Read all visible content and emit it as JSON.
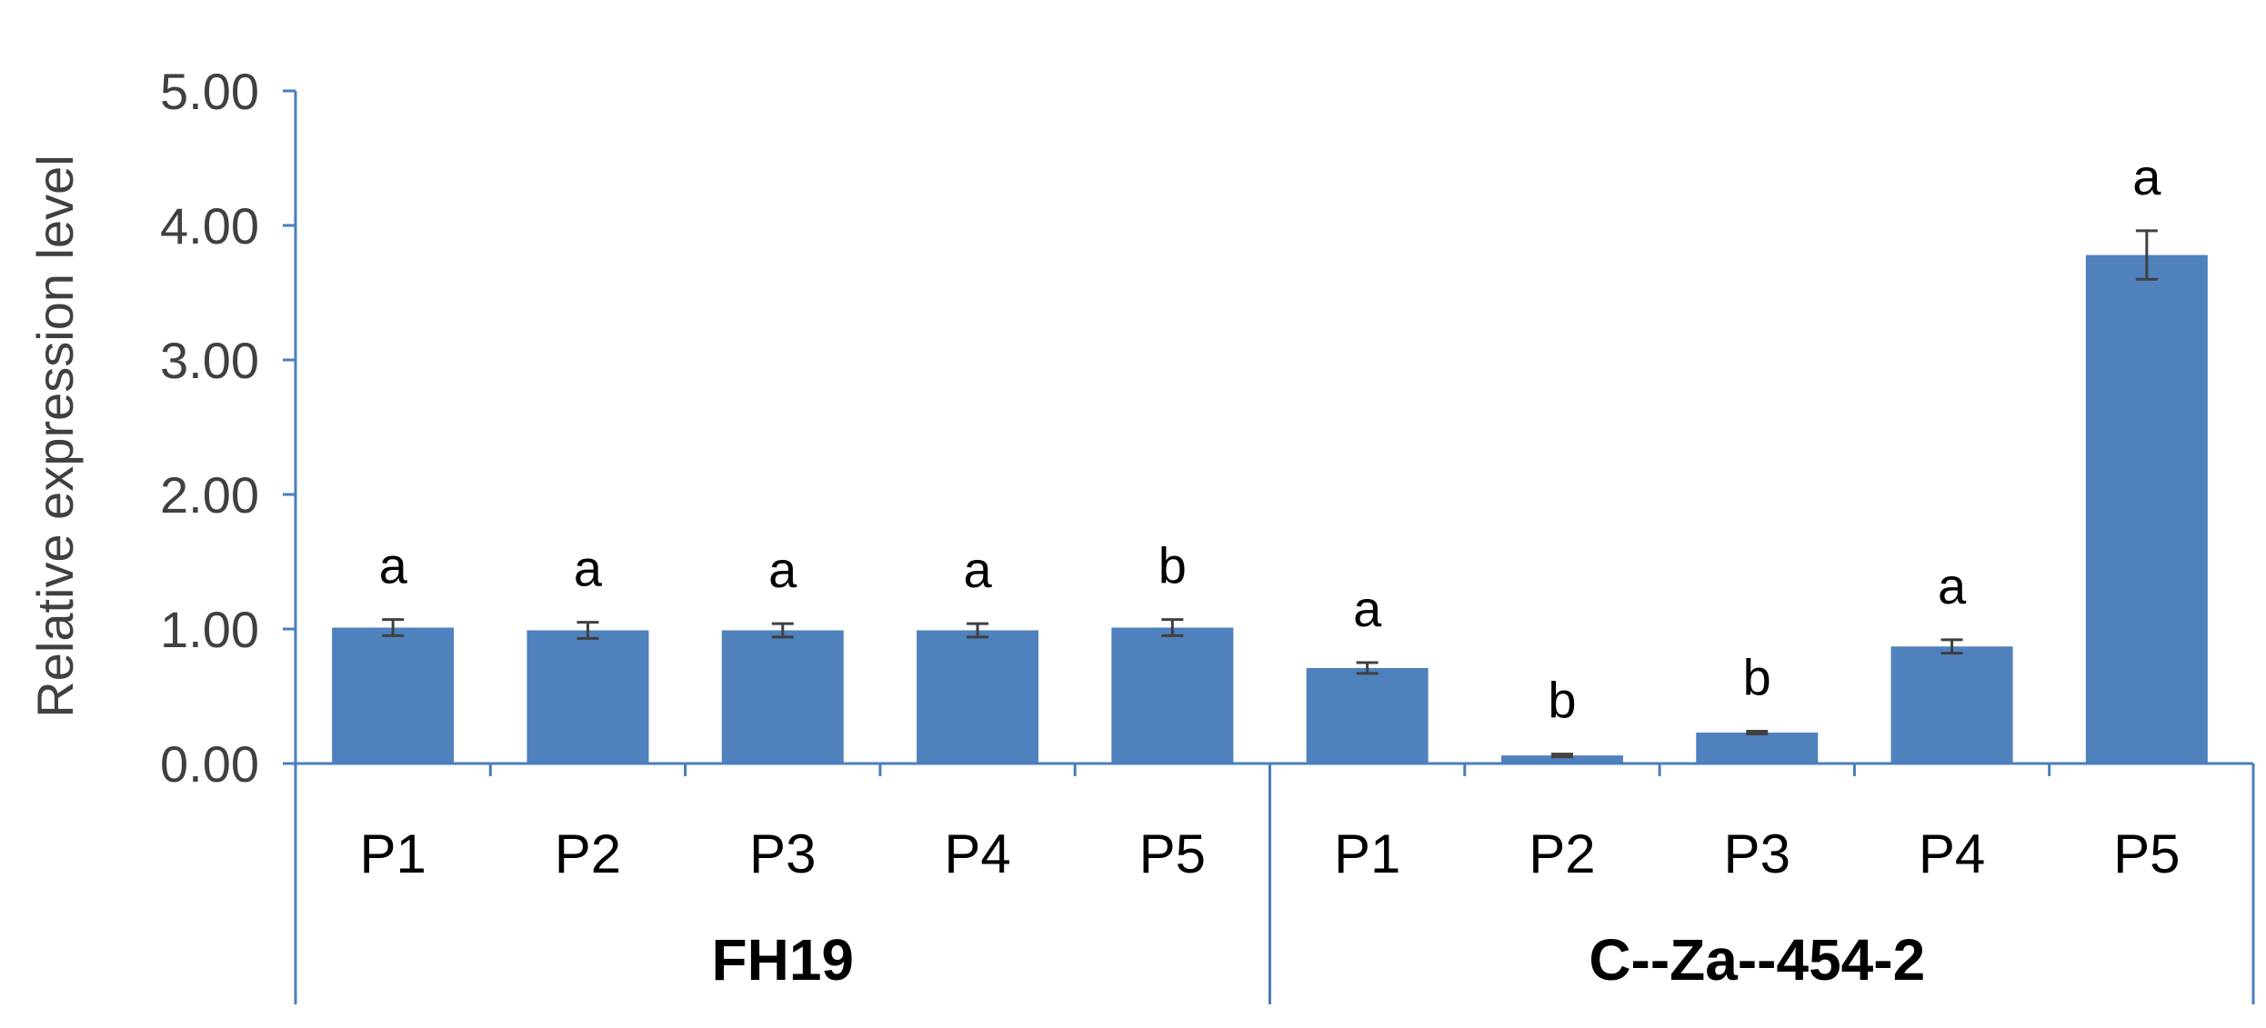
{
  "chart_data": {
    "type": "bar",
    "title": "",
    "ylabel": "Relative expression level",
    "xlabel": "",
    "ylim": [
      0,
      5
    ],
    "y_ticks": [
      "0.00",
      "1.00",
      "2.00",
      "3.00",
      "4.00",
      "5.00"
    ],
    "grid": false,
    "legend": "none",
    "bar_color": "#4f81bd",
    "axis_color": "#4a7ebb",
    "groups": [
      {
        "name": "FH19",
        "categories": [
          "P1",
          "P2",
          "P3",
          "P4",
          "P5"
        ],
        "values": [
          1.01,
          0.99,
          0.99,
          0.99,
          1.01
        ],
        "errors": [
          0.06,
          0.06,
          0.05,
          0.05,
          0.06
        ],
        "significance": [
          "a",
          "a",
          "a",
          "a",
          "b"
        ]
      },
      {
        "name": "C--Za--454-2",
        "categories": [
          "P1",
          "P2",
          "P3",
          "P4",
          "P5"
        ],
        "values": [
          0.71,
          0.06,
          0.23,
          0.87,
          3.78
        ],
        "errors": [
          0.04,
          0.01,
          0.01,
          0.05,
          0.18
        ],
        "significance": [
          "a",
          "b",
          "b",
          "a",
          "a"
        ]
      }
    ]
  }
}
